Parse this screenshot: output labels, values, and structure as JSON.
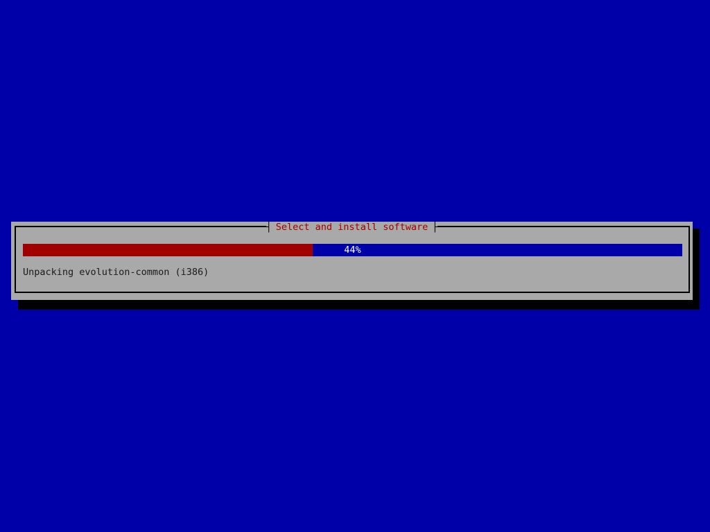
{
  "dialog": {
    "title": "Select and install software",
    "title_left_tick": "┤",
    "title_right_tick": "├",
    "progress": {
      "percent": 44,
      "label": "44%"
    },
    "status": "Unpacking evolution-common (i386)"
  },
  "colors": {
    "background_blue": "#0000a8",
    "dialog_gray": "#a9a9a9",
    "progress_red": "#a00000",
    "progress_trough_blue": "#0000a8",
    "title_red": "#a00000",
    "shadow_black": "#000000",
    "percent_text": "#ffffff",
    "status_text": "#1a1a1a"
  }
}
